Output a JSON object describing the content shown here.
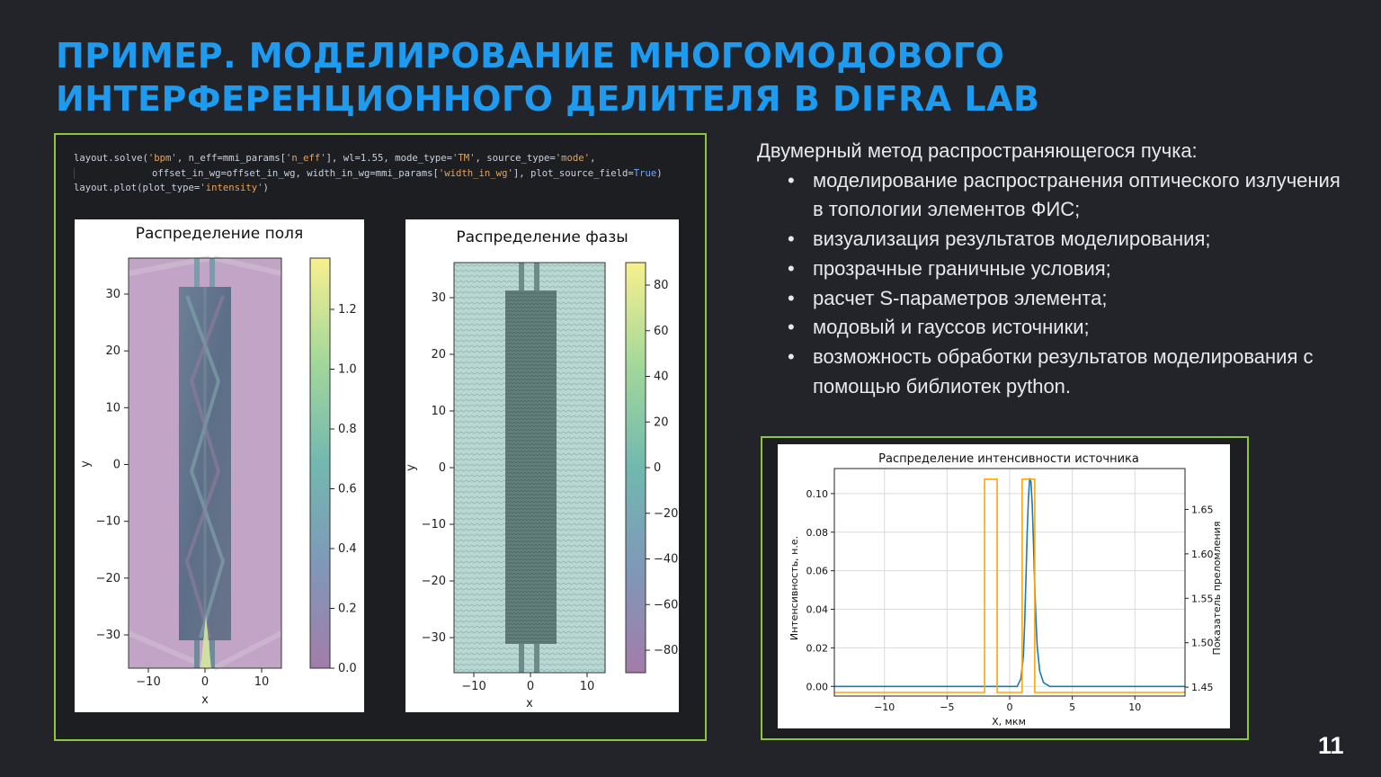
{
  "title": {
    "line1": "ПРИМЕР. МОДЕЛИРОВАНИЕ МНОГОМОДОВОГО",
    "line2": "ИНТЕРФЕРЕНЦИОННОГО ДЕЛИТЕЛЯ В DIFRA LAB"
  },
  "code": {
    "line1_a": "layout.solve(",
    "line1_b": "'bpm'",
    "line1_c": ", n_eff=mmi_params[",
    "line1_d": "'n_eff'",
    "line1_e": "], wl=1.55, mode_type=",
    "line1_f": "'TM'",
    "line1_g": ", source_type=",
    "line1_h": "'mode'",
    "line1_i": ",",
    "line2_a": "offset_in_wg=offset_in_wg, width_in_wg=mmi_params[",
    "line2_b": "'width_in_wg'",
    "line2_c": "], plot_source_field=",
    "line2_d": "True",
    "line2_e": ")",
    "line3_a": "layout.plot(plot_type=",
    "line3_b": "'intensity'",
    "line3_c": ")"
  },
  "field_plot": {
    "title": "Распределение поля",
    "xlabel": "x",
    "ylabel": "y",
    "xticks": [
      "−10",
      "0",
      "10"
    ],
    "yticks": [
      "30",
      "20",
      "10",
      "0",
      "−10",
      "−20",
      "−30"
    ],
    "cbar_ticks": [
      "1.2",
      "1.0",
      "0.8",
      "0.6",
      "0.4",
      "0.2",
      "0.0"
    ],
    "colors": {
      "bg": "#c7a6c9",
      "core": "#6a6f88",
      "high": "#f5ee8a",
      "low": "#9c7aa8"
    }
  },
  "phase_plot": {
    "title": "Распределение фазы",
    "xlabel": "x",
    "ylabel": "y",
    "xticks": [
      "−10",
      "0",
      "10"
    ],
    "yticks": [
      "30",
      "20",
      "10",
      "0",
      "−10",
      "−20",
      "−30"
    ],
    "cbar_ticks": [
      "80",
      "60",
      "40",
      "20",
      "0",
      "−20",
      "−40",
      "−60",
      "−80"
    ],
    "colors": {
      "bg": "#b7d6d2",
      "core": "#5e7b78"
    }
  },
  "description": {
    "heading": "Двумерный метод распространяющегося пучка:",
    "items": [
      "моделирование распространения оптического излучения в топологии элементов ФИС;",
      "визуализация результатов моделирования;",
      "прозрачные граничные условия;",
      "расчет S-параметров элемента;",
      "модовый и гауссов источники;",
      "возможность обработки результатов моделирования с помощью библиотек python."
    ]
  },
  "chart_data": {
    "type": "line",
    "title": "Распределение интенсивности источника",
    "xlabel": "X, мкм",
    "ylabel": "Интенсивность, н.е.",
    "y2label": "Показатель преломления",
    "xlim": [
      -14,
      14
    ],
    "ylim": [
      -0.005,
      0.113
    ],
    "y2lim": [
      1.44,
      1.696
    ],
    "xticks": [
      -10,
      -5,
      0,
      5,
      10
    ],
    "yticks": [
      0.0,
      0.02,
      0.04,
      0.06,
      0.08,
      0.1
    ],
    "y2ticks": [
      1.45,
      1.5,
      1.55,
      1.6,
      1.65
    ],
    "xtick_labels": [
      "−10",
      "−5",
      "0",
      "5",
      "10"
    ],
    "ytick_labels": [
      "0.00",
      "0.02",
      "0.04",
      "0.06",
      "0.08",
      "0.10"
    ],
    "y2tick_labels": [
      "1.45",
      "1.50",
      "1.55",
      "1.60",
      "1.65"
    ],
    "grid": true,
    "series": [
      {
        "color": "#1f77b4",
        "axis": "left",
        "x": [
          -14,
          0.6,
          0.9,
          1.1,
          1.2,
          1.3,
          1.4,
          1.5,
          1.6,
          1.7,
          1.8,
          1.9,
          2.0,
          2.1,
          2.2,
          2.4,
          2.7,
          3.2,
          14
        ],
        "y": [
          0,
          0,
          0.004,
          0.016,
          0.033,
          0.056,
          0.08,
          0.098,
          0.108,
          0.106,
          0.094,
          0.074,
          0.052,
          0.034,
          0.021,
          0.008,
          0.002,
          0,
          0
        ]
      },
      {
        "color": "#ffa500",
        "axis": "right",
        "x": [
          -14,
          -2.0,
          -2.0,
          -1.0,
          -1.0,
          1.0,
          1.0,
          2.0,
          2.0,
          14
        ],
        "y": [
          1.444,
          1.444,
          1.684,
          1.684,
          1.444,
          1.444,
          1.684,
          1.684,
          1.444,
          1.444
        ]
      }
    ]
  },
  "page_number": "11"
}
